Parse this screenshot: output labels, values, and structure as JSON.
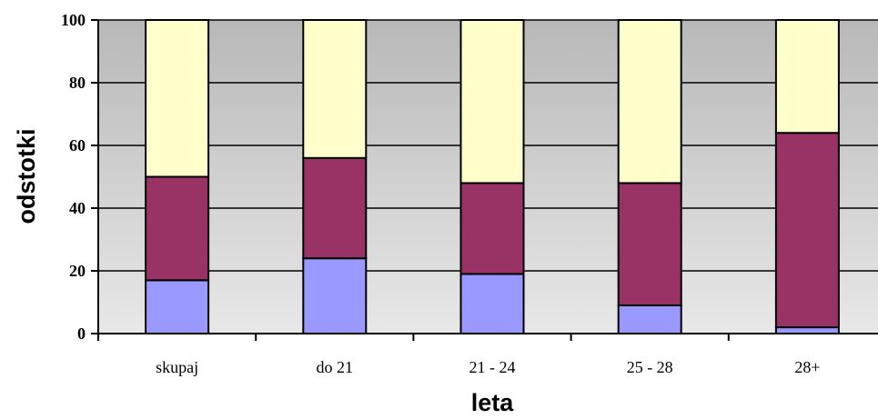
{
  "chart_data": {
    "type": "bar",
    "stacked": true,
    "normalized_percent": true,
    "categories": [
      "skupaj",
      "do 21",
      "21 - 24",
      "25 - 28",
      "28+"
    ],
    "series": [
      {
        "color": "#9999ff",
        "values": [
          17,
          24,
          19,
          9,
          2
        ]
      },
      {
        "color": "#993366",
        "values": [
          33,
          32,
          29,
          39,
          62
        ]
      },
      {
        "color": "#ffffcc",
        "values": [
          50,
          44,
          52,
          52,
          36
        ]
      }
    ],
    "title": "",
    "xlabel": "leta",
    "ylabel": "odstotki",
    "ylim": [
      0,
      100
    ],
    "yticks": [
      0,
      20,
      40,
      60,
      80,
      100
    ],
    "grid": true,
    "legend": "none",
    "background_gradient": [
      "#e8e8e8",
      "#b8b8b8"
    ]
  }
}
